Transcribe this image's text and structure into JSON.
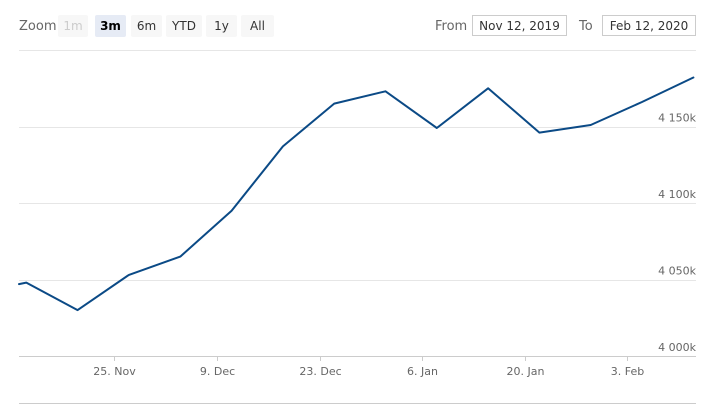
{
  "range_selector": {
    "zoom_label": "Zoom",
    "buttons": [
      {
        "label": "1m",
        "state": "disabled"
      },
      {
        "label": "3m",
        "state": "selected"
      },
      {
        "label": "6m",
        "state": "normal"
      },
      {
        "label": "YTD",
        "state": "normal"
      },
      {
        "label": "1y",
        "state": "normal"
      },
      {
        "label": "All",
        "state": "normal"
      }
    ],
    "from_label": "From",
    "from_value": "Nov 12, 2019",
    "to_label": "To",
    "to_value": "Feb 12, 2020"
  },
  "chart_data": {
    "type": "line",
    "title": "",
    "xlabel": "",
    "ylabel": "",
    "x_tick_labels": [
      "25. Nov",
      "9. Dec",
      "23. Dec",
      "6. Jan",
      "20. Jan",
      "3. Feb"
    ],
    "y_tick_labels": [
      "4 000k",
      "4 050k",
      "4 100k",
      "4 150k"
    ],
    "ylim": [
      4000000,
      4200000
    ],
    "xlim": [
      "2019-11-12",
      "2020-02-12"
    ],
    "grid": true,
    "series": [
      {
        "color": "#0b4a86",
        "points": [
          {
            "x": "2019-11-12",
            "y": 4047000
          },
          {
            "x": "2019-11-13",
            "y": 4048000
          },
          {
            "x": "2019-11-20",
            "y": 4030000
          },
          {
            "x": "2019-11-27",
            "y": 4053000
          },
          {
            "x": "2019-12-04",
            "y": 4065000
          },
          {
            "x": "2019-12-11",
            "y": 4095000
          },
          {
            "x": "2019-12-18",
            "y": 4137000
          },
          {
            "x": "2019-12-25",
            "y": 4165000
          },
          {
            "x": "2020-01-01",
            "y": 4173000
          },
          {
            "x": "2020-01-08",
            "y": 4149000
          },
          {
            "x": "2020-01-15",
            "y": 4175000
          },
          {
            "x": "2020-01-22",
            "y": 4146000
          },
          {
            "x": "2020-01-29",
            "y": 4151000
          },
          {
            "x": "2020-02-05",
            "y": 4166000
          },
          {
            "x": "2020-02-12",
            "y": 4182000
          }
        ]
      }
    ]
  }
}
